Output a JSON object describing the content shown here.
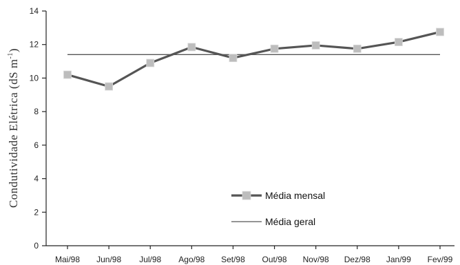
{
  "chart_data": {
    "type": "line",
    "title": "",
    "xlabel": "",
    "ylabel": "Condutividade Elétrica (dS m",
    "ylabel_sup": "-1",
    "ylabel_close": ")",
    "categories": [
      "Mai/98",
      "Jun/98",
      "Jul/98",
      "Ago/98",
      "Set/98",
      "Out/98",
      "Nov/98",
      "Dez/98",
      "Jan/99",
      "Fev/99"
    ],
    "ylim": [
      0,
      14
    ],
    "yticks": [
      0,
      2,
      4,
      6,
      8,
      10,
      12,
      14
    ],
    "grid": false,
    "legend_position": "lower-right",
    "series": [
      {
        "name": "Média mensal",
        "values": [
          10.2,
          9.5,
          10.9,
          11.85,
          11.2,
          11.75,
          11.95,
          11.75,
          12.15,
          12.75
        ],
        "color": "#555555",
        "marker": "square",
        "marker_color": "#bdbdbd"
      },
      {
        "name": "Média geral",
        "values": [
          11.4,
          11.4,
          11.4,
          11.4,
          11.4,
          11.4,
          11.4,
          11.4,
          11.4,
          11.4
        ],
        "color": "#555555",
        "style": "thin-line"
      }
    ]
  }
}
